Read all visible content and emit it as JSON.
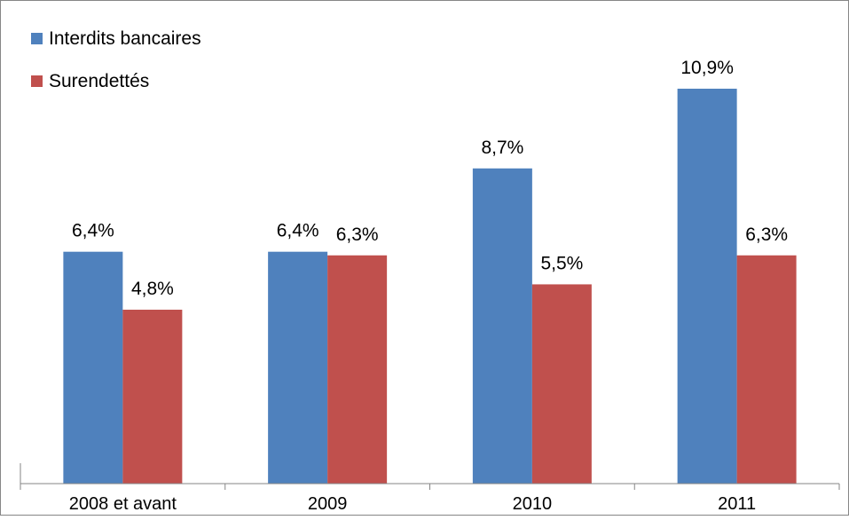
{
  "chart_data": {
    "type": "bar",
    "title": "",
    "xlabel": "",
    "ylabel": "",
    "categories": [
      "2008 et avant",
      "2009",
      "2010",
      "2011"
    ],
    "series": [
      {
        "name": "Interdits bancaires",
        "color": "#4F81BD",
        "values": [
          6.4,
          6.4,
          8.7,
          10.9
        ],
        "labels": [
          "6,4%",
          "6,4%",
          "8,7%",
          "10,9%"
        ]
      },
      {
        "name": "Surendettés",
        "color": "#C0504D",
        "values": [
          4.8,
          6.3,
          5.5,
          6.3
        ],
        "labels": [
          "4,8%",
          "6,3%",
          "5,5%",
          "6,3%"
        ]
      }
    ],
    "ylim": [
      0,
      12
    ],
    "y_axis_visible": false,
    "grid": false,
    "legend_position": "top-left",
    "border_color": "#868686",
    "axis_color": "#868686",
    "text_color": "#000000"
  }
}
